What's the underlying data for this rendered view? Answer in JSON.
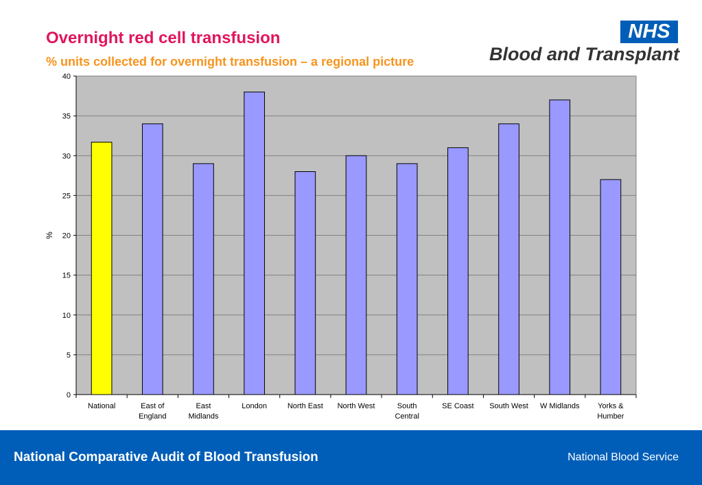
{
  "header": {
    "title": "Overnight red cell transfusion",
    "subtitle": "% units collected for overnight transfusion – a regional picture"
  },
  "logo": {
    "nhs": "NHS",
    "text": "Blood and Transplant"
  },
  "colors": {
    "title": "#e0155e",
    "subtitle": "#f7941d",
    "bar": "#9999ff",
    "highlight_bar": "#ffff00",
    "plot_background": "#c0c0c0",
    "footer": "#005eb8"
  },
  "chart_data": {
    "type": "bar",
    "categories": [
      [
        "National"
      ],
      [
        "East of",
        "England"
      ],
      [
        "East",
        "Midlands"
      ],
      [
        "London"
      ],
      [
        "North East"
      ],
      [
        "North West"
      ],
      [
        "South",
        "Central"
      ],
      [
        "SE Coast"
      ],
      [
        "South West"
      ],
      [
        "W Midlands"
      ],
      [
        "Yorks &",
        "Humber"
      ]
    ],
    "values": [
      31.7,
      34,
      29,
      38,
      28,
      30,
      29,
      31,
      34,
      37,
      27
    ],
    "highlight_index": 0,
    "ylabel": "%",
    "ylim": [
      0,
      40
    ],
    "yticks": [
      0,
      5,
      10,
      15,
      20,
      25,
      30,
      35,
      40
    ],
    "grid": true,
    "legend": "none"
  },
  "footer": {
    "left": "National Comparative Audit of Blood Transfusion",
    "right": "National Blood Service"
  }
}
